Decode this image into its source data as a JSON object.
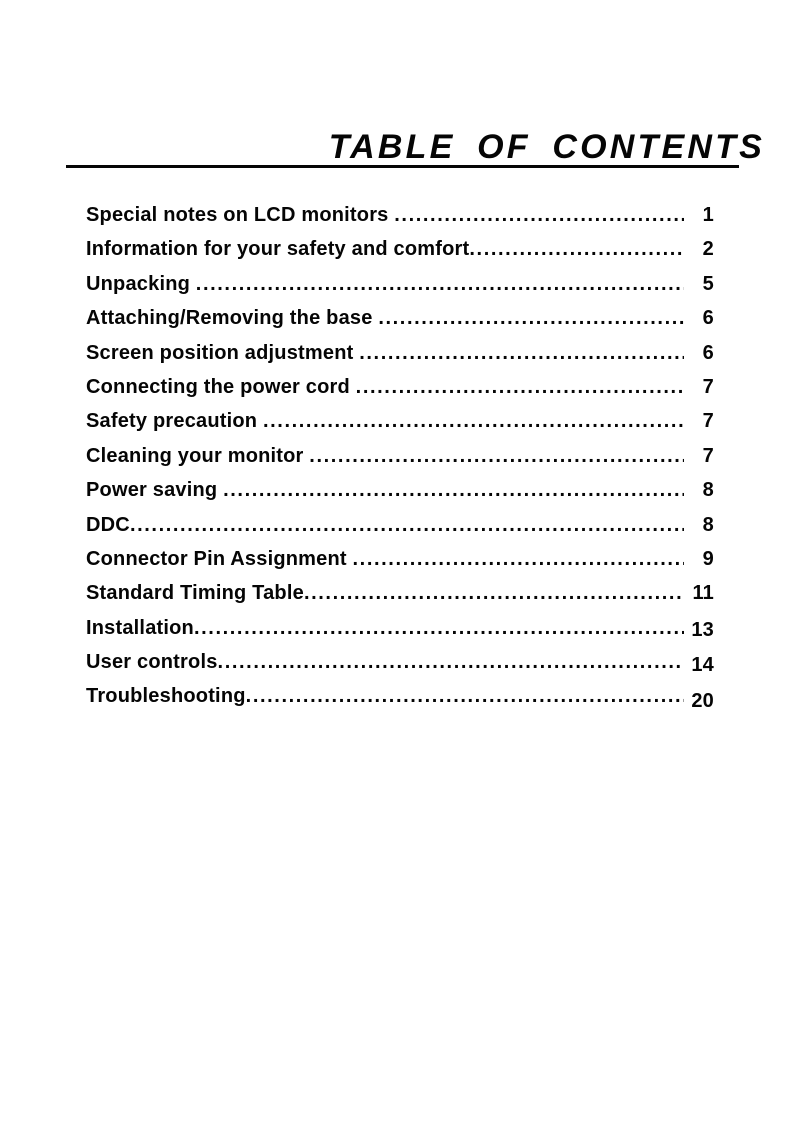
{
  "page": {
    "title": "TABLE OF CONTENTS"
  },
  "colors": {
    "text": "#050505",
    "background": "#ffffff"
  },
  "toc": {
    "items": [
      {
        "label": "Special notes on LCD monitors ",
        "page": "1"
      },
      {
        "label": "Information for your safety and comfort",
        "page": "2"
      },
      {
        "label": "Unpacking ",
        "page": "5"
      },
      {
        "label": "Attaching/Removing the base ",
        "page": "6"
      },
      {
        "label": "Screen position adjustment ",
        "page": "6"
      },
      {
        "label": "Connecting the power cord ",
        "page": "7"
      },
      {
        "label": "Safety precaution ",
        "page": "7"
      },
      {
        "label": "Cleaning your monitor ",
        "page": "7"
      },
      {
        "label": "Power saving ",
        "page": "8"
      },
      {
        "label": "DDC",
        "page": "8"
      },
      {
        "label": "Connector Pin Assignment ",
        "page": "9"
      },
      {
        "label": "Standard Timing Table",
        "page": "11"
      },
      {
        "label": "Installation",
        "page": "13"
      },
      {
        "label": "User controls",
        "page": "14"
      },
      {
        "label": "Troubleshooting",
        "page": "20"
      }
    ]
  }
}
